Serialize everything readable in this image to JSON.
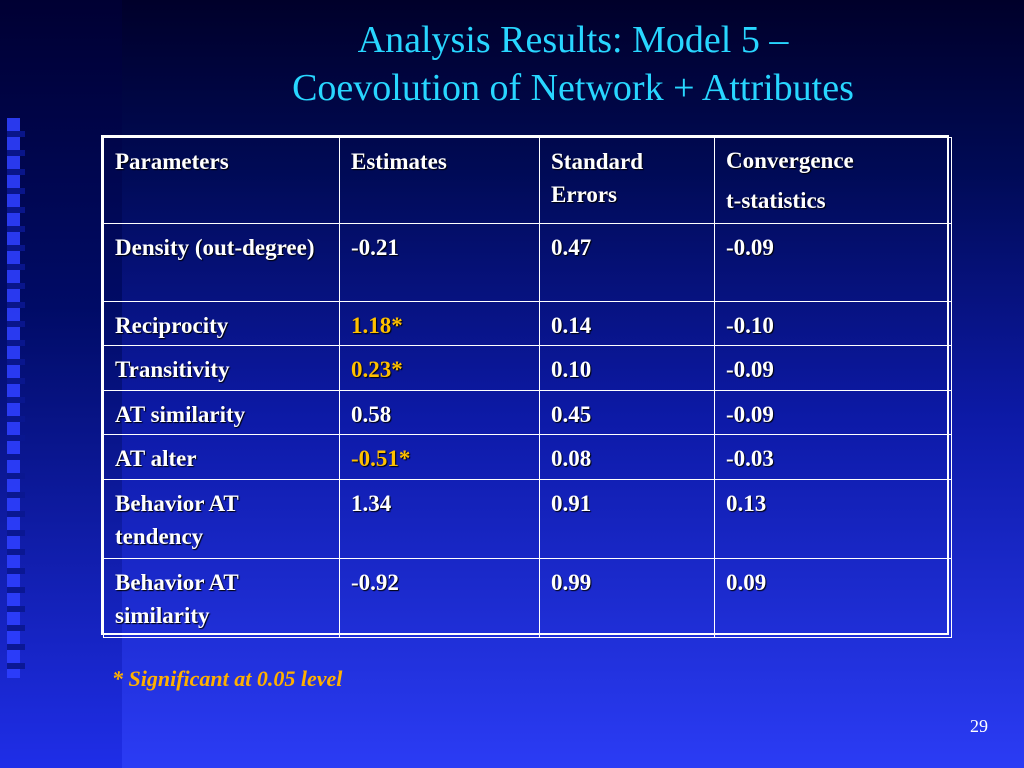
{
  "slide": {
    "title_line1": "Analysis Results: Model 5 –",
    "title_line2": "Coevolution of Network + Attributes",
    "footnote": "* Significant at 0.05 level",
    "page_number": "29"
  },
  "table": {
    "headers": [
      "Parameters",
      "Estimates",
      "Standard Errors",
      "Convergence t-statistics"
    ],
    "header_conv_line1": "Convergence",
    "header_conv_line2": "t-statistics",
    "rows": [
      {
        "param": "Density (out-degree)",
        "estimate": "-0.21",
        "se": "0.47",
        "t": "-0.09"
      },
      {
        "param": "Reciprocity",
        "estimate": "1.18*",
        "se": "0.14",
        "t": "-0.10"
      },
      {
        "param": "Transitivity",
        "estimate": "0.23*",
        "se": "0.10",
        "t": "-0.09"
      },
      {
        "param": "AT similarity",
        "estimate": "0.58",
        "se": "0.45",
        "t": "-0.09"
      },
      {
        "param": "AT alter",
        "estimate": "-0.51*",
        "se": "0.08",
        "t": "-0.03"
      },
      {
        "param": "Behavior AT tendency",
        "estimate": "1.34",
        "se": "0.91",
        "t": "0.13"
      },
      {
        "param": "Behavior AT similarity",
        "estimate": "-0.92",
        "se": "0.99",
        "t": "0.09"
      }
    ]
  },
  "colors": {
    "title": "#28d6ff",
    "significant": "#ffc000",
    "text": "#ffffff"
  }
}
